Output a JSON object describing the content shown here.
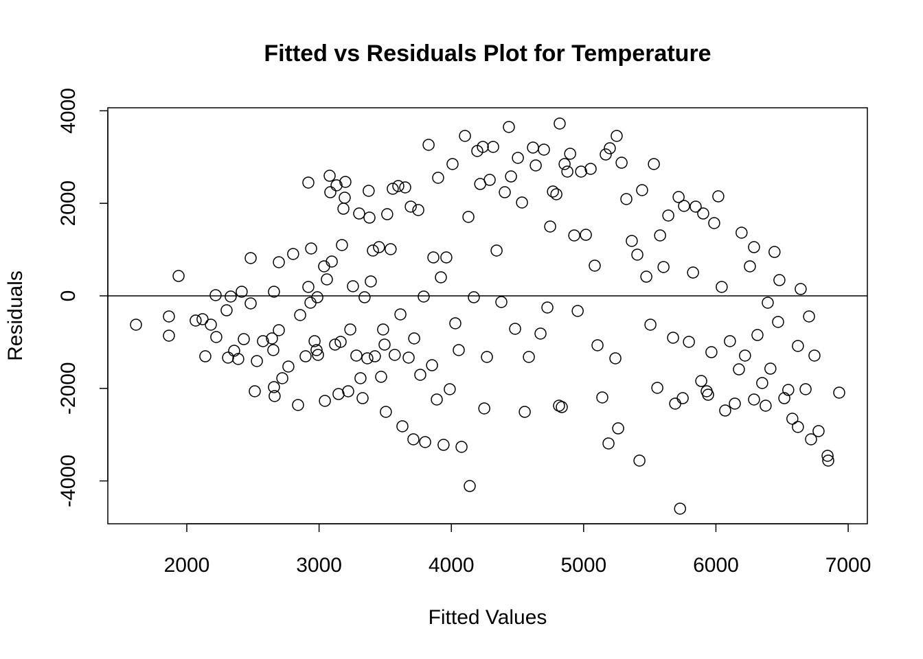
{
  "chart_data": {
    "type": "scatter",
    "title": "Fitted vs Residuals Plot for Temperature",
    "x_label": "Fitted Values",
    "y_label": "Residuals",
    "xlim": [
      1403,
      7145
    ],
    "ylim": [
      -4926,
      4065
    ],
    "xticks": [
      2000,
      3000,
      4000,
      5000,
      6000,
      7000
    ],
    "yticks": [
      -4000,
      -2000,
      0,
      2000,
      4000
    ],
    "reference_line": 0,
    "color": "#000000",
    "x": [
      1616,
      1865,
      1865,
      1938,
      2067,
      2119,
      2140,
      2182,
      2218,
      2223,
      2301,
      2312,
      2332,
      2358,
      2389,
      2415,
      2431,
      2483,
      2483,
      2514,
      2530,
      2576,
      2644,
      2654,
      2659,
      2664,
      2659,
      2696,
      2696,
      2722,
      2768,
      2804,
      2841,
      2857,
      2898,
      2919,
      2919,
      2940,
      2935,
      2966,
      2981,
      2987,
      2992,
      3038,
      3044,
      3059,
      3080,
      3085,
      3096,
      3121,
      3132,
      3147,
      3163,
      3173,
      3184,
      3194,
      3199,
      3220,
      3236,
      3256,
      3282,
      3303,
      3313,
      3329,
      3344,
      3365,
      3375,
      3381,
      3391,
      3407,
      3422,
      3453,
      3469,
      3484,
      3495,
      3505,
      3515,
      3541,
      3557,
      3572,
      3599,
      3615,
      3630,
      3651,
      3677,
      3693,
      3713,
      3719,
      3750,
      3765,
      3791,
      3802,
      3828,
      3854,
      3864,
      3890,
      3900,
      3921,
      3941,
      3962,
      3988,
      4009,
      4030,
      4056,
      4077,
      4103,
      4129,
      4139,
      4170,
      4196,
      4218,
      4238,
      4249,
      4269,
      4290,
      4316,
      4342,
      4378,
      4404,
      4435,
      4451,
      4482,
      4503,
      4534,
      4555,
      4586,
      4617,
      4638,
      4674,
      4700,
      4726,
      4747,
      4768,
      4794,
      4814,
      4819,
      4835,
      4856,
      4877,
      4898,
      4929,
      4955,
      4981,
      5017,
      5053,
      5084,
      5105,
      5141,
      5167,
      5188,
      5198,
      5240,
      5250,
      5261,
      5287,
      5323,
      5364,
      5406,
      5422,
      5442,
      5474,
      5505,
      5531,
      5557,
      5578,
      5604,
      5640,
      5676,
      5692,
      5718,
      5729,
      5749,
      5759,
      5796,
      5827,
      5847,
      5889,
      5904,
      5930,
      5941,
      5966,
      5987,
      6018,
      6044,
      6070,
      6106,
      6143,
      6174,
      6194,
      6220,
      6257,
      6288,
      6288,
      6314,
      6350,
      6376,
      6392,
      6412,
      6443,
      6470,
      6480,
      6517,
      6547,
      6578,
      6620,
      6620,
      6641,
      6678,
      6704,
      6719,
      6745,
      6776,
      6844,
      6849,
      6932
    ],
    "values": [
      -623,
      -445,
      -860,
      430,
      -534,
      -504,
      -1306,
      -623,
      15,
      -890,
      -312,
      -1335,
      -15,
      -1187,
      -1365,
      89,
      -935,
      816,
      -163,
      -2062,
      -1409,
      -979,
      -920,
      -1172,
      89,
      -2166,
      -1973,
      727,
      -742,
      -1780,
      -1528,
      905,
      -2359,
      -415,
      -1306,
      193,
      2448,
      1024,
      -148,
      -979,
      -1172,
      -30,
      -1276,
      638,
      -2270,
      356,
      2596,
      2240,
      742,
      -1053,
      2389,
      -2122,
      -994,
      1098,
      1884,
      2122,
      2463,
      -2062,
      -727,
      208,
      -1291,
      1780,
      -1780,
      -2211,
      -30,
      -1350,
      2270,
      1691,
      312,
      979,
      -1306,
      1053,
      -1750,
      -727,
      -1053,
      -2507,
      1765,
      1009,
      2315,
      -1276,
      2374,
      -400,
      -2819,
      2344,
      -1335,
      1929,
      -3101,
      -920,
      1855,
      -1706,
      -15,
      -3160,
      3264,
      -1499,
      831,
      -2240,
      2552,
      401,
      -3220,
      831,
      -2018,
      2849,
      -593,
      -1172,
      -3264,
      3457,
      1706,
      -4110,
      -30,
      3131,
      2418,
      3220,
      -2433,
      -1320,
      2507,
      3220,
      979,
      -133,
      2240,
      3650,
      2581,
      -712,
      2982,
      2018,
      -2507,
      -1320,
      3205,
      2819,
      -816,
      3160,
      -252,
      1499,
      2255,
      2196,
      -2374,
      3724,
      -2404,
      2849,
      2686,
      3071,
      1306,
      -326,
      2686,
      1320,
      2745,
      653,
      -1068,
      -2196,
      3056,
      -3190,
      3190,
      -1350,
      3457,
      -2864,
      2878,
      2092,
      1187,
      890,
      -3561,
      2285,
      415,
      -623,
      2849,
      -1988,
      1306,
      623,
      1736,
      -905,
      -2329,
      2136,
      -4599,
      -2211,
      1944,
      -994,
      504,
      1929,
      -1840,
      1780,
      -2062,
      -2137,
      -1217,
      1573,
      2151,
      193,
      -2478,
      -979,
      -2329,
      -1588,
      1365,
      -1291,
      638,
      -2240,
      1053,
      -846,
      -1884,
      -2374,
      -148,
      -1573,
      949,
      -564,
      341,
      -2211,
      -2033,
      -2656,
      -2834,
      -1083,
      148,
      -2018,
      -445,
      -3101,
      -1291,
      -2923,
      -3457,
      -3561,
      -2092
    ]
  }
}
